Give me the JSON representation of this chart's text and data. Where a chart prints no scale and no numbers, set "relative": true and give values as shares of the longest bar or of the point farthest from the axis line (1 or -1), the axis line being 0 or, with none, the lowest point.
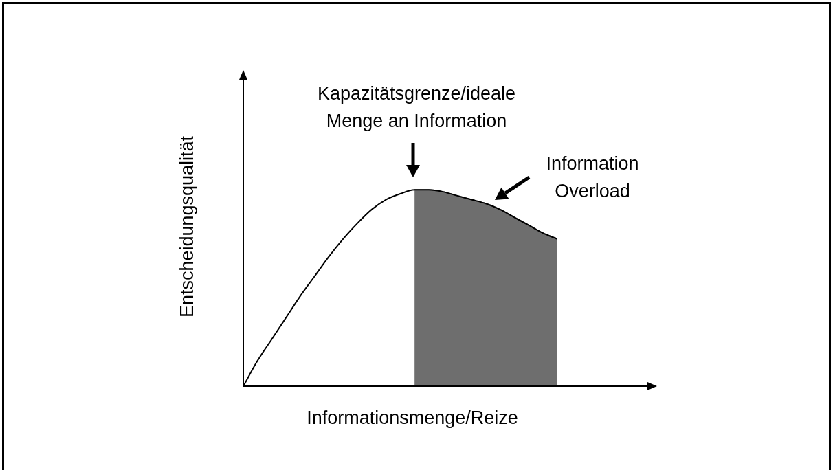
{
  "chart_data": {
    "type": "line",
    "relative": true,
    "xlabel": "Informationsmenge/Reize",
    "ylabel": "Entscheidungsqualität",
    "annotations": [
      "Kapazitätsgrenze/ideale Menge an Information",
      "Information Overload"
    ],
    "categories": [
      null,
      null,
      null,
      null,
      null,
      null,
      null,
      null,
      null,
      null,
      null,
      null,
      null,
      null,
      null,
      null,
      null,
      null,
      null,
      null,
      null,
      null,
      null,
      null,
      null,
      null,
      null,
      null,
      null,
      null
    ],
    "series": [
      {
        "color": "#000000",
        "values": [
          0,
          0.13,
          0.24,
          0.35,
          0.46,
          0.56,
          0.66,
          0.75,
          0.83,
          0.9,
          0.95,
          0.98,
          1,
          1,
          0.99,
          0.97,
          0.95,
          0.93,
          0.9,
          0.86,
          0.82,
          0.78,
          0.75,
          null,
          null,
          null,
          null,
          null,
          null,
          null
        ]
      },
      {
        "type": "area",
        "color": "#6e6e6e",
        "values": [
          null,
          null,
          null,
          null,
          null,
          null,
          null,
          null,
          null,
          null,
          null,
          null,
          1,
          1,
          0.99,
          0.97,
          0.95,
          0.93,
          0.9,
          0.86,
          0.82,
          0.78,
          0.75,
          null,
          null,
          null,
          null,
          null,
          null,
          null
        ]
      }
    ],
    "legend": false,
    "marker": "none",
    "line_style": "solid"
  }
}
